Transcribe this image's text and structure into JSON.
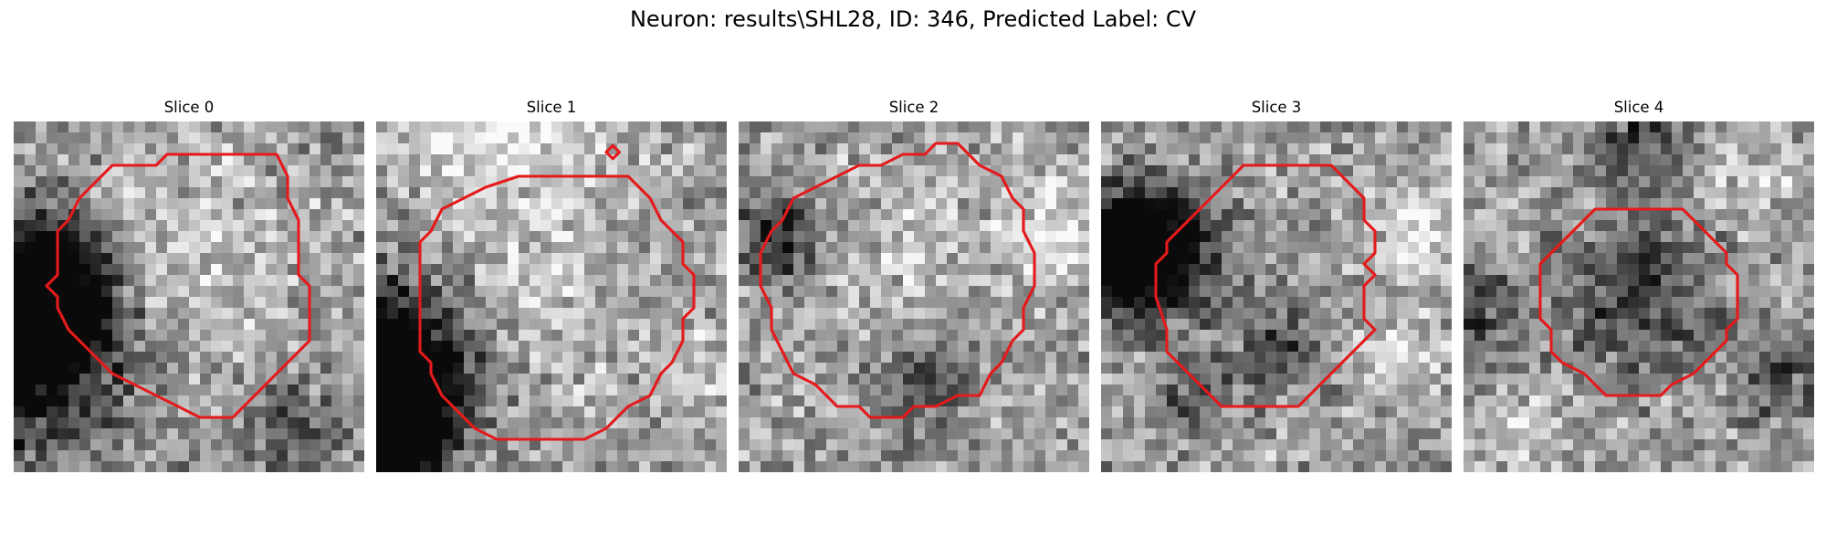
{
  "figure": {
    "title": "Neuron: results\\SHL28, ID: 346, Predicted Label: CV"
  },
  "contour_color": "#e41a1c",
  "panels": [
    {
      "title": "Slice 0",
      "seed": 11,
      "contour": [
        [
          8.0,
          1.5
        ],
        [
          12.0,
          1.5
        ],
        [
          12.5,
          2.5
        ],
        [
          12.5,
          3.5
        ],
        [
          13.0,
          4.5
        ],
        [
          13.0,
          7.0
        ],
        [
          13.5,
          7.5
        ],
        [
          13.5,
          10.0
        ],
        [
          12.5,
          11.0
        ],
        [
          11.5,
          12.0
        ],
        [
          10.5,
          13.0
        ],
        [
          10.0,
          13.5
        ],
        [
          8.5,
          13.5
        ],
        [
          7.5,
          13.0
        ],
        [
          6.5,
          12.5
        ],
        [
          5.5,
          12.0
        ],
        [
          4.5,
          11.5
        ],
        [
          4.0,
          11.0
        ],
        [
          3.0,
          10.0
        ],
        [
          2.5,
          9.5
        ],
        [
          2.0,
          8.5
        ],
        [
          2.0,
          8.0
        ],
        [
          1.5,
          7.5
        ],
        [
          2.0,
          7.0
        ],
        [
          2.0,
          5.0
        ],
        [
          2.5,
          4.5
        ],
        [
          3.0,
          3.5
        ],
        [
          3.5,
          3.0
        ],
        [
          4.5,
          2.0
        ],
        [
          5.5,
          2.0
        ],
        [
          6.5,
          2.0
        ],
        [
          7.0,
          1.5
        ]
      ],
      "dark_spots": [
        [
          0.8,
          8.7,
          2.4,
          0.75
        ],
        [
          0.5,
          10.5,
          3.5,
          0.55
        ],
        [
          1.8,
          6.5,
          1.8,
          0.35
        ],
        [
          12.5,
          14.2,
          1.6,
          0.3
        ]
      ],
      "bright_spots": [
        [
          7.2,
          6.6,
          3.5,
          0.18
        ]
      ]
    },
    {
      "title": "Slice 1",
      "seed": 23,
      "contour": [
        [
          8.0,
          2.5
        ],
        [
          11.5,
          2.5
        ],
        [
          12.5,
          3.5
        ],
        [
          13.0,
          4.5
        ],
        [
          13.5,
          5.0
        ],
        [
          14.0,
          5.5
        ],
        [
          14.0,
          6.5
        ],
        [
          14.5,
          7.0
        ],
        [
          14.5,
          8.5
        ],
        [
          14.0,
          9.0
        ],
        [
          14.0,
          10.0
        ],
        [
          13.5,
          11.0
        ],
        [
          13.0,
          11.5
        ],
        [
          12.5,
          12.5
        ],
        [
          11.5,
          13.0
        ],
        [
          10.5,
          14.0
        ],
        [
          9.5,
          14.5
        ],
        [
          5.5,
          14.5
        ],
        [
          4.5,
          14.0
        ],
        [
          4.0,
          13.5
        ],
        [
          3.0,
          12.5
        ],
        [
          2.5,
          11.5
        ],
        [
          2.5,
          11.0
        ],
        [
          2.0,
          10.5
        ],
        [
          2.0,
          8.5
        ],
        [
          2.0,
          7.0
        ],
        [
          2.0,
          5.5
        ],
        [
          2.5,
          5.0
        ],
        [
          3.0,
          4.0
        ],
        [
          4.0,
          3.5
        ],
        [
          5.0,
          3.0
        ],
        [
          6.5,
          2.5
        ],
        [
          7.0,
          2.5
        ]
      ],
      "extra_loop": [
        [
          10.8,
          1.1
        ],
        [
          11.1,
          1.4
        ],
        [
          10.8,
          1.7
        ],
        [
          10.5,
          1.4
        ]
      ],
      "dark_spots": [
        [
          0.7,
          12.7,
          2.1,
          0.85
        ],
        [
          0.4,
          10.5,
          2.8,
          0.55
        ],
        [
          1.2,
          14.5,
          1.5,
          0.5
        ]
      ],
      "bright_spots": [
        [
          4.5,
          0.6,
          2.3,
          0.32
        ],
        [
          8.8,
          0.8,
          2.0,
          0.18
        ],
        [
          14.5,
          11.5,
          1.3,
          0.22
        ],
        [
          7.5,
          8.2,
          3.0,
          0.14
        ]
      ]
    },
    {
      "title": "Slice 2",
      "seed": 37,
      "contour": [
        [
          9.0,
          1.0
        ],
        [
          10.0,
          1.0
        ],
        [
          11.0,
          2.0
        ],
        [
          12.0,
          2.5
        ],
        [
          12.5,
          3.5
        ],
        [
          13.0,
          4.0
        ],
        [
          13.0,
          5.0
        ],
        [
          13.5,
          6.0
        ],
        [
          13.5,
          7.5
        ],
        [
          13.0,
          8.5
        ],
        [
          13.0,
          9.5
        ],
        [
          12.5,
          10.0
        ],
        [
          12.0,
          11.0
        ],
        [
          11.5,
          11.5
        ],
        [
          11.0,
          12.5
        ],
        [
          10.0,
          12.5
        ],
        [
          9.0,
          13.0
        ],
        [
          8.0,
          13.0
        ],
        [
          7.5,
          13.5
        ],
        [
          6.0,
          13.5
        ],
        [
          5.5,
          13.0
        ],
        [
          4.5,
          13.0
        ],
        [
          3.5,
          12.0
        ],
        [
          2.5,
          11.5
        ],
        [
          2.0,
          10.5
        ],
        [
          1.5,
          9.5
        ],
        [
          1.5,
          8.5
        ],
        [
          1.0,
          7.5
        ],
        [
          1.0,
          6.0
        ],
        [
          1.5,
          5.0
        ],
        [
          2.0,
          4.5
        ],
        [
          2.5,
          3.5
        ],
        [
          3.5,
          3.0
        ],
        [
          4.5,
          2.5
        ],
        [
          5.5,
          2.0
        ],
        [
          6.5,
          2.0
        ],
        [
          7.5,
          1.5
        ],
        [
          8.5,
          1.5
        ]
      ],
      "dark_spots": [
        [
          1.7,
          5.5,
          1.3,
          0.55
        ],
        [
          8.5,
          12.0,
          1.6,
          0.3
        ]
      ],
      "bright_spots": [
        [
          14.5,
          5.0,
          1.5,
          0.3
        ],
        [
          7.2,
          6.3,
          3.2,
          0.12
        ]
      ]
    },
    {
      "title": "Slice 3",
      "seed": 53,
      "contour": [
        [
          6.5,
          2.0
        ],
        [
          10.5,
          2.0
        ],
        [
          11.5,
          3.0
        ],
        [
          12.0,
          3.5
        ],
        [
          12.0,
          4.5
        ],
        [
          12.5,
          5.0
        ],
        [
          12.5,
          6.0
        ],
        [
          12.0,
          6.5
        ],
        [
          12.5,
          7.0
        ],
        [
          12.0,
          7.5
        ],
        [
          12.0,
          9.0
        ],
        [
          12.5,
          9.5
        ],
        [
          11.5,
          10.5
        ],
        [
          10.5,
          11.5
        ],
        [
          9.5,
          12.5
        ],
        [
          9.0,
          13.0
        ],
        [
          5.5,
          13.0
        ],
        [
          4.5,
          12.0
        ],
        [
          3.5,
          11.0
        ],
        [
          3.0,
          10.5
        ],
        [
          3.0,
          9.5
        ],
        [
          2.5,
          8.0
        ],
        [
          2.5,
          6.5
        ],
        [
          3.0,
          6.0
        ],
        [
          3.0,
          5.5
        ],
        [
          3.5,
          5.0
        ],
        [
          4.0,
          4.5
        ],
        [
          5.0,
          3.5
        ],
        [
          6.0,
          2.5
        ]
      ],
      "dark_spots": [
        [
          2.2,
          6.0,
          2.0,
          0.8
        ],
        [
          0.5,
          5.8,
          1.8,
          0.45
        ],
        [
          8.0,
          10.2,
          1.5,
          0.3
        ],
        [
          4.0,
          12.5,
          1.2,
          0.3
        ]
      ],
      "bright_spots": [
        [
          14.5,
          5.0,
          1.6,
          0.25
        ],
        [
          13.8,
          10.5,
          1.4,
          0.2
        ]
      ]
    },
    {
      "title": "Slice 4",
      "seed": 71,
      "contour": [
        [
          6.5,
          4.0
        ],
        [
          10.0,
          4.0
        ],
        [
          11.5,
          5.5
        ],
        [
          12.0,
          6.0
        ],
        [
          12.0,
          6.5
        ],
        [
          12.5,
          7.0
        ],
        [
          12.5,
          9.0
        ],
        [
          12.0,
          9.5
        ],
        [
          12.0,
          10.0
        ],
        [
          11.5,
          10.5
        ],
        [
          11.0,
          11.0
        ],
        [
          10.5,
          11.5
        ],
        [
          9.5,
          12.0
        ],
        [
          9.0,
          12.5
        ],
        [
          6.5,
          12.5
        ],
        [
          6.0,
          12.0
        ],
        [
          5.5,
          11.5
        ],
        [
          4.5,
          11.0
        ],
        [
          4.0,
          10.5
        ],
        [
          4.0,
          9.5
        ],
        [
          3.5,
          9.0
        ],
        [
          3.5,
          8.0
        ],
        [
          3.5,
          6.5
        ],
        [
          4.0,
          6.0
        ],
        [
          4.5,
          5.5
        ],
        [
          5.0,
          5.0
        ],
        [
          6.0,
          4.0
        ]
      ],
      "dark_spots": [
        [
          8.0,
          7.8,
          2.6,
          0.35
        ],
        [
          8.3,
          0.8,
          1.5,
          0.35
        ],
        [
          14.5,
          12.0,
          1.5,
          0.3
        ],
        [
          0.5,
          8.5,
          1.4,
          0.35
        ]
      ],
      "bright_spots": [
        [
          3.0,
          14.0,
          1.2,
          0.18
        ],
        [
          13.0,
          2.5,
          1.4,
          0.16
        ]
      ]
    }
  ]
}
